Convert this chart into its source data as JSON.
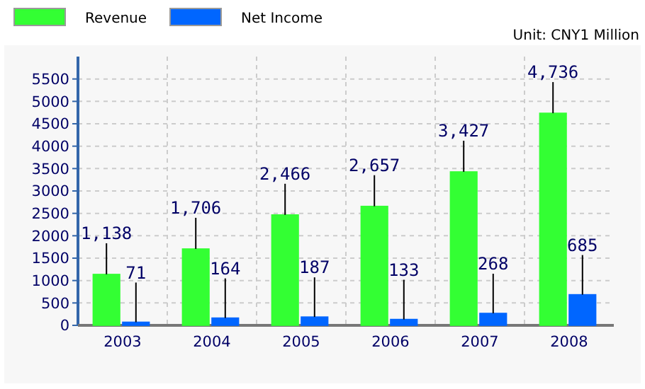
{
  "chart_data": {
    "type": "bar",
    "categories": [
      "2003",
      "2004",
      "2005",
      "2006",
      "2007",
      "2008"
    ],
    "series": [
      {
        "name": "Revenue",
        "color": "#33ff33",
        "values": [
          1138,
          1706,
          2466,
          2657,
          3427,
          4736
        ],
        "value_labels": [
          "1,138",
          "1,706",
          "2,466",
          "2,657",
          "3,427",
          "4,736"
        ]
      },
      {
        "name": "Net Income",
        "color": "#0066ff",
        "values": [
          71,
          164,
          187,
          133,
          268,
          685
        ],
        "value_labels": [
          "71",
          "164",
          "187",
          "133",
          "268",
          "685"
        ]
      }
    ],
    "ylim": [
      0,
      6000
    ],
    "yticks": [
      0,
      500,
      1000,
      1500,
      2000,
      2500,
      3000,
      3500,
      4000,
      4500,
      5000,
      5500
    ],
    "grid": true,
    "legend": "top left",
    "annotations": [
      "Unit: CNY1 Million"
    ]
  }
}
